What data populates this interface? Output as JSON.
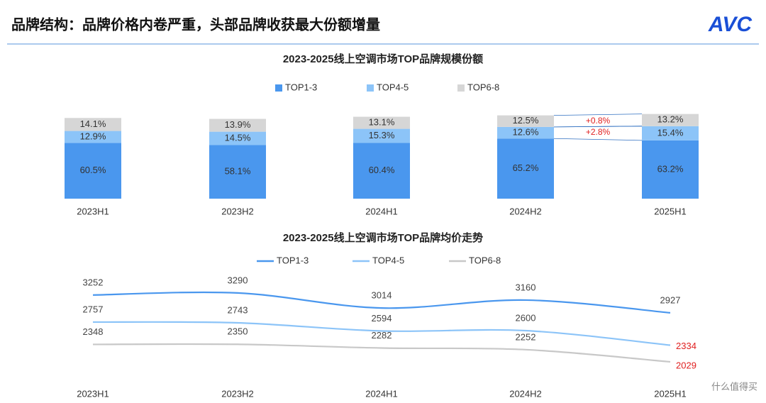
{
  "header": {
    "title": "品牌结构：品牌价格内卷严重，头部品牌收获最大份额增量",
    "logo": "AVC"
  },
  "chart_data": [
    {
      "type": "stacked-bar",
      "title": "2023-2025线上空调市场TOP品牌规模份额",
      "categories": [
        "2023H1",
        "2023H2",
        "2024H1",
        "2024H2",
        "2025H1"
      ],
      "series": [
        {
          "name": "TOP1-3",
          "color": "#4a97ee",
          "values": [
            60.5,
            58.1,
            60.4,
            65.2,
            63.2
          ],
          "value_labels": [
            "60.5%",
            "58.1%",
            "60.4%",
            "65.2%",
            "63.2%"
          ]
        },
        {
          "name": "TOP4-5",
          "color": "#8cc4f8",
          "values": [
            12.9,
            14.5,
            15.3,
            12.6,
            15.4
          ],
          "value_labels": [
            "12.9%",
            "14.5%",
            "15.3%",
            "12.6%",
            "15.4%"
          ]
        },
        {
          "name": "TOP6-8",
          "color": "#d6d6d6",
          "values": [
            14.1,
            13.9,
            13.1,
            12.5,
            13.2
          ],
          "value_labels": [
            "14.1%",
            "13.9%",
            "13.1%",
            "12.5%",
            "13.2%"
          ]
        }
      ],
      "annotations": [
        "+0.8%",
        "+2.8%"
      ]
    },
    {
      "type": "line",
      "title": "2023-2025线上空调市场TOP品牌均价走势",
      "categories": [
        "2023H1",
        "2023H2",
        "2024H1",
        "2024H2",
        "2025H1"
      ],
      "series": [
        {
          "name": "TOP1-3",
          "color": "#4a97ee",
          "values": [
            3252,
            3290,
            3014,
            3160,
            2927
          ]
        },
        {
          "name": "TOP4-5",
          "color": "#8cc4f8",
          "values": [
            2757,
            2743,
            2594,
            2600,
            2334
          ]
        },
        {
          "name": "TOP6-8",
          "color": "#c8c8c8",
          "values": [
            2348,
            2350,
            2282,
            2252,
            2029
          ]
        }
      ]
    }
  ],
  "footer": "什么值得买"
}
